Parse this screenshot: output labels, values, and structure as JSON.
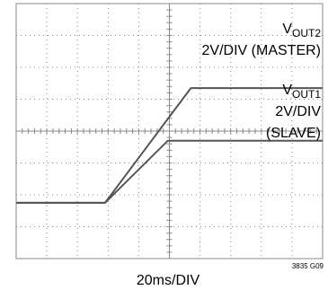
{
  "chart_data": {
    "type": "line",
    "grid": true,
    "x_divisions": 10,
    "y_divisions": 8,
    "x_scale_label": "20ms/DIV",
    "figure_code": "3835 G09",
    "x_range_div": [
      0,
      10
    ],
    "y_range_div": [
      0,
      8
    ],
    "series": [
      {
        "name": "VOUT2",
        "label": {
          "main": "V",
          "sub": "OUT2",
          "scale": "2V/DIV (MASTER)"
        },
        "x": [
          0.0,
          2.9,
          5.7,
          6.2,
          10.0
        ],
        "y": [
          1.75,
          1.75,
          5.35,
          5.35,
          5.35
        ]
      },
      {
        "name": "VOUT1",
        "label": {
          "main": "V",
          "sub": "OUT1",
          "scale": "2V/DIV",
          "role": "(SLAVE)"
        },
        "x": [
          0.0,
          2.9,
          4.95,
          5.1,
          10.0
        ],
        "y": [
          1.75,
          1.75,
          3.7,
          3.7,
          3.7
        ]
      }
    ],
    "trace_color": "#555555",
    "grid_color": "#888888"
  }
}
